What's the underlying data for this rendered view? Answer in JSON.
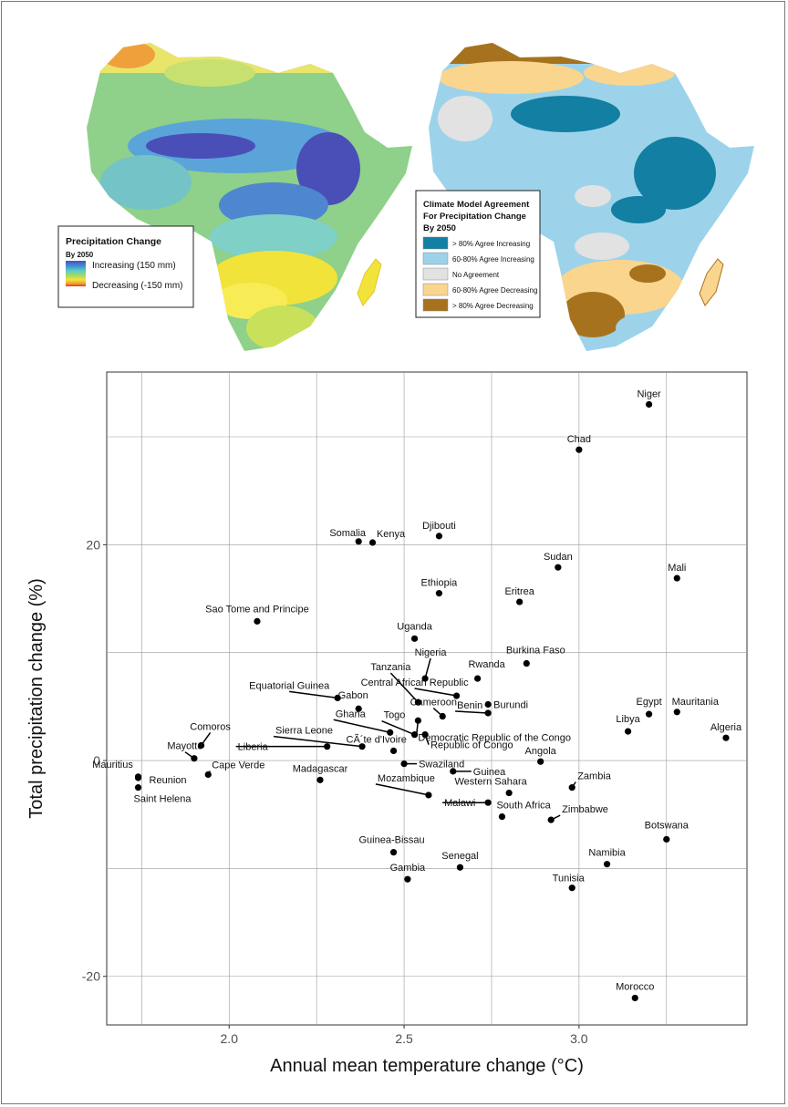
{
  "map_left": {
    "legend": {
      "title": "Precipitation Change",
      "subtitle": "By 2050",
      "high_label": "Increasing (150 mm)",
      "low_label": "Decreasing (-150 mm)"
    }
  },
  "map_right": {
    "legend": {
      "title_lines": [
        "Climate Model Agreement",
        "For Precipitation Change",
        "By 2050"
      ],
      "items": [
        {
          "label": "> 80% Agree Increasing",
          "color": "#127fa3"
        },
        {
          "label": "60-80% Agree Increasing",
          "color": "#9dd3ea"
        },
        {
          "label": "No Agreement",
          "color": "#e2e2e2"
        },
        {
          "label": "60-80% Agree Decreasing",
          "color": "#f9d58e"
        },
        {
          "label": "> 80% Agree Decreasing",
          "color": "#a7721e"
        }
      ]
    }
  },
  "chart_data": {
    "type": "scatter",
    "xlabel": "Annual mean temperature change (°C)",
    "ylabel": "Total precipitation change (%)",
    "xlim": [
      1.65,
      3.48
    ],
    "ylim": [
      -24.5,
      36.0
    ],
    "xticks": [
      2.0,
      2.5,
      3.0
    ],
    "yticks": [
      -20,
      0,
      20
    ],
    "grid": true,
    "points": [
      {
        "name": "Niger",
        "x": 3.2,
        "y": 33.0
      },
      {
        "name": "Chad",
        "x": 3.0,
        "y": 28.8
      },
      {
        "name": "Djibouti",
        "x": 2.6,
        "y": 20.8
      },
      {
        "name": "Somalia",
        "x": 2.37,
        "y": 20.3
      },
      {
        "name": "Kenya",
        "x": 2.41,
        "y": 20.2
      },
      {
        "name": "Sudan",
        "x": 2.94,
        "y": 17.9
      },
      {
        "name": "Mali",
        "x": 3.28,
        "y": 16.9
      },
      {
        "name": "Ethiopia",
        "x": 2.6,
        "y": 15.5
      },
      {
        "name": "Eritrea",
        "x": 2.83,
        "y": 14.7
      },
      {
        "name": "Sao Tome and Principe",
        "x": 2.08,
        "y": 12.9
      },
      {
        "name": "Uganda",
        "x": 2.53,
        "y": 11.3
      },
      {
        "name": "Burkina Faso",
        "x": 2.85,
        "y": 9.0
      },
      {
        "name": "Nigeria",
        "x": 2.56,
        "y": 7.6
      },
      {
        "name": "Rwanda",
        "x": 2.71,
        "y": 7.6
      },
      {
        "name": "Central African Republic",
        "x": 2.65,
        "y": 6.0
      },
      {
        "name": "Equatorial Guinea",
        "x": 2.31,
        "y": 5.8
      },
      {
        "name": "Tanzania",
        "x": 2.54,
        "y": 5.4
      },
      {
        "name": "Burundi",
        "x": 2.74,
        "y": 5.2
      },
      {
        "name": "Gabon",
        "x": 2.37,
        "y": 4.8
      },
      {
        "name": "Benin",
        "x": 2.74,
        "y": 4.4
      },
      {
        "name": "Egypt",
        "x": 3.2,
        "y": 4.3
      },
      {
        "name": "Mauritania",
        "x": 3.28,
        "y": 4.5
      },
      {
        "name": "Cameroon",
        "x": 2.61,
        "y": 4.1
      },
      {
        "name": "Democratic Republic of the Congo",
        "x": 2.54,
        "y": 3.7
      },
      {
        "name": "Libya",
        "x": 3.14,
        "y": 2.7
      },
      {
        "name": "Ghana",
        "x": 2.46,
        "y": 2.6
      },
      {
        "name": "Togo",
        "x": 2.53,
        "y": 2.4
      },
      {
        "name": "Republic of Congo",
        "x": 2.56,
        "y": 2.4
      },
      {
        "name": "Algeria",
        "x": 3.42,
        "y": 2.1
      },
      {
        "name": "Comoros",
        "x": 1.92,
        "y": 1.4
      },
      {
        "name": "Sierra Leone",
        "x": 2.38,
        "y": 1.3
      },
      {
        "name": "Liberia",
        "x": 2.28,
        "y": 1.3
      },
      {
        "name": "CÃ´te d'Ivoire",
        "x": 2.47,
        "y": 0.9
      },
      {
        "name": "Mayotte",
        "x": 1.9,
        "y": 0.2
      },
      {
        "name": "Angola",
        "x": 2.89,
        "y": -0.1
      },
      {
        "name": "Swaziland",
        "x": 2.5,
        "y": -0.3
      },
      {
        "name": "Guinea",
        "x": 2.64,
        "y": -1.0
      },
      {
        "name": "Mauritius",
        "x": 1.74,
        "y": -1.5
      },
      {
        "name": "Reunion",
        "x": 1.74,
        "y": -1.6
      },
      {
        "name": "Cape Verde",
        "x": 1.94,
        "y": -1.3
      },
      {
        "name": "Madagascar",
        "x": 2.26,
        "y": -1.8
      },
      {
        "name": "Saint Helena",
        "x": 1.74,
        "y": -2.5
      },
      {
        "name": "Zambia",
        "x": 2.98,
        "y": -2.5
      },
      {
        "name": "Western Sahara",
        "x": 2.8,
        "y": -3.0
      },
      {
        "name": "Mozambique",
        "x": 2.57,
        "y": -3.2
      },
      {
        "name": "Malawi",
        "x": 2.74,
        "y": -3.9
      },
      {
        "name": "South Africa",
        "x": 2.78,
        "y": -5.2
      },
      {
        "name": "Zimbabwe",
        "x": 2.92,
        "y": -5.5
      },
      {
        "name": "Botswana",
        "x": 3.25,
        "y": -7.3
      },
      {
        "name": "Guinea-Bissau",
        "x": 2.47,
        "y": -8.5
      },
      {
        "name": "Namibia",
        "x": 3.08,
        "y": -9.6
      },
      {
        "name": "Senegal",
        "x": 2.66,
        "y": -9.9
      },
      {
        "name": "Gambia",
        "x": 2.51,
        "y": -11.0
      },
      {
        "name": "Tunisia",
        "x": 2.98,
        "y": -11.8
      },
      {
        "name": "Morocco",
        "x": 3.16,
        "y": -22.0
      }
    ]
  }
}
